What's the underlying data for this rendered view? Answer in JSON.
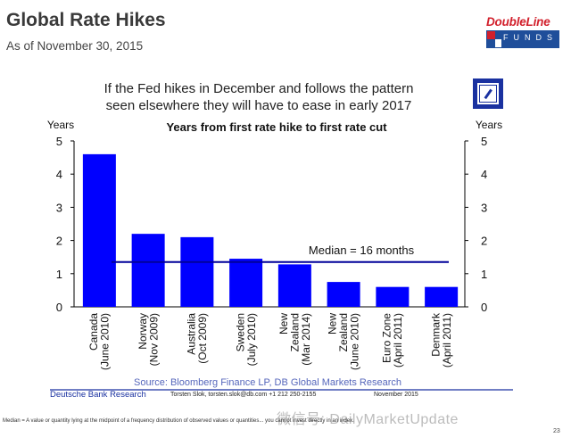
{
  "slide": {
    "title": "Global Rate Hikes",
    "subtitle": "As of November 30, 2015",
    "logo_top": "DoubleLine",
    "logo_bottom": "FUNDS",
    "page_number": "23",
    "footnote": "Median = A value or quantity lying at the midpoint of a frequency distribution of observed values or quantities... you cannot invest directly in an index.",
    "watermark": "微信号: DailyMarketUpdate"
  },
  "headline": {
    "line1": "If the Fed hikes in December and follows the pattern",
    "line2": "seen elsewhere they will have to ease in early 2017"
  },
  "footer": {
    "brand": "Deutsche Bank Research",
    "contact": "Torsten Slok, torsten.slok@db.com  +1 212 250-2155",
    "date": "November 2015"
  },
  "colors": {
    "bar": "#0000ff",
    "median": "#000099",
    "brand_blue": "#1a31a0",
    "logo_red": "#d2202c"
  },
  "chart_data": {
    "type": "bar",
    "title": "Years from first rate hike to first rate cut",
    "ylabel_left": "Years",
    "ylabel_right": "Years",
    "ylim": [
      0,
      5
    ],
    "yticks": [
      0,
      1,
      2,
      3,
      4,
      5
    ],
    "categories": [
      [
        "Canada",
        "(June 2010)"
      ],
      [
        "Norway",
        "(Nov 2009)"
      ],
      [
        "Australia",
        "(Oct 2009)"
      ],
      [
        "Sweden",
        "(July 2010)"
      ],
      [
        "New",
        "Zealand",
        "(Mar 2014)"
      ],
      [
        "New",
        "Zealand",
        "(June 2010)"
      ],
      [
        "Euro Zone",
        "(April 2011)"
      ],
      [
        "Denmark",
        "(April 2011)"
      ]
    ],
    "values": [
      4.6,
      2.2,
      2.1,
      1.45,
      1.28,
      0.75,
      0.6,
      0.6
    ],
    "median": {
      "value": 1.35,
      "label": "Median = 16 months"
    },
    "source": "Source: Bloomberg Finance LP, DB Global Markets Research"
  }
}
